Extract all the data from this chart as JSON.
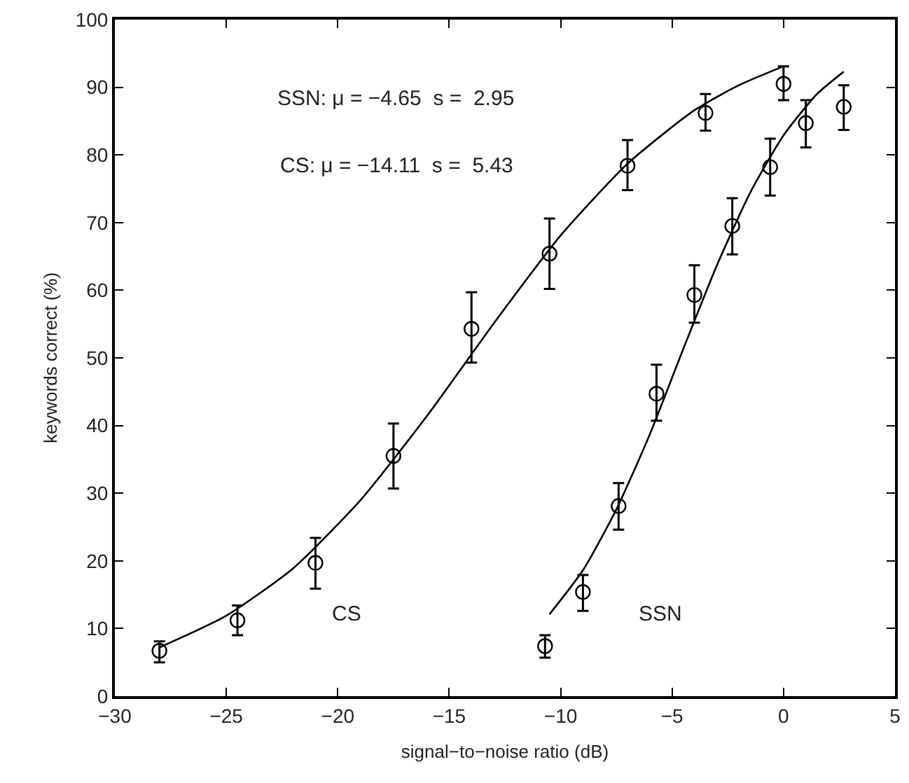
{
  "chart_data": {
    "type": "scatter",
    "xlabel": "signal−to−noise ratio (dB)",
    "ylabel": "keywords correct (%)",
    "xlim": [
      -30,
      5
    ],
    "xticks": [
      {
        "value": -30,
        "label": "−30"
      },
      {
        "value": -25,
        "label": "−25"
      },
      {
        "value": -20,
        "label": "−20"
      },
      {
        "value": -15,
        "label": "−15"
      },
      {
        "value": -10,
        "label": "−10"
      },
      {
        "value": -5,
        "label": "−5"
      },
      0,
      5
    ],
    "ylim": [
      0,
      100
    ],
    "yticks": [
      0,
      10,
      20,
      30,
      40,
      50,
      60,
      70,
      80,
      90,
      100
    ],
    "legend": false,
    "series": [
      {
        "name": "CS",
        "color": "#000000",
        "marker": "circle",
        "x": [
          -28.0,
          -24.5,
          -21.0,
          -17.5,
          -14.0,
          -10.5,
          -7.0,
          -3.5,
          0.0
        ],
        "values": [
          6.7,
          11.2,
          19.7,
          35.5,
          54.3,
          65.4,
          78.4,
          86.2,
          90.5
        ],
        "errors": [
          [
            5.0,
            8.1
          ],
          [
            9.0,
            13.4
          ],
          [
            15.9,
            23.4
          ],
          [
            30.7,
            40.3
          ],
          [
            49.3,
            59.7
          ],
          [
            60.2,
            70.6
          ],
          [
            74.8,
            82.2
          ],
          [
            83.6,
            89.0
          ],
          [
            88.1,
            93.1
          ]
        ]
      },
      {
        "name": "SSN",
        "color": "#000000",
        "marker": "circle",
        "x": [
          -10.7,
          -9.0,
          -7.4,
          -5.7,
          -4.0,
          -2.3,
          -0.6,
          1.0,
          2.7
        ],
        "values": [
          7.4,
          15.4,
          28.1,
          44.7,
          59.3,
          69.5,
          78.2,
          84.7,
          87.1
        ],
        "errors": [
          [
            5.7,
            9.0
          ],
          [
            12.6,
            17.9
          ],
          [
            24.6,
            31.5
          ],
          [
            40.7,
            49.0
          ],
          [
            55.2,
            63.7
          ],
          [
            65.3,
            73.6
          ],
          [
            74.0,
            82.4
          ],
          [
            81.1,
            88.1
          ],
          [
            83.7,
            90.3
          ]
        ]
      },
      {
        "type": "line",
        "color": "#000000",
        "marker": "none",
        "line_style": "solid",
        "x": [
          -28,
          -25,
          -22,
          -19,
          -16,
          -13,
          -10,
          -7,
          -4,
          -2,
          0
        ],
        "values": [
          7.2,
          11.9,
          18.9,
          28.9,
          41.4,
          55.1,
          68.1,
          78.7,
          86.6,
          90.3,
          93.1
        ]
      },
      {
        "type": "line",
        "color": "#000000",
        "marker": "none",
        "line_style": "solid",
        "x": [
          -10.5,
          -9,
          -7.5,
          -6,
          -4.5,
          -3,
          -1.5,
          0,
          1.5,
          2.7
        ],
        "values": [
          12.1,
          18.6,
          27.6,
          38.7,
          51.3,
          63.6,
          74.4,
          82.9,
          89.0,
          92.3
        ]
      }
    ],
    "annotations": [
      "SSN: μ = −4.65  s =  2.95",
      "CS: μ = −14.11  s =  5.43"
    ]
  }
}
